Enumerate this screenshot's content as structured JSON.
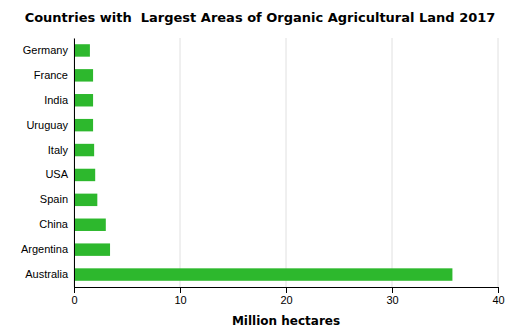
{
  "chart_data": {
    "type": "bar",
    "orientation": "horizontal",
    "title": "Countries with  Largest Areas of Organic Agricultural Land 2017",
    "xlabel": "Million hectares",
    "categories": [
      "Australia",
      "Argentina",
      "China",
      "Spain",
      "USA",
      "Italy",
      "Uruguay",
      "India",
      "France",
      "Germany"
    ],
    "values": [
      35.7,
      3.4,
      3.0,
      2.2,
      2.0,
      1.9,
      1.8,
      1.8,
      1.8,
      1.5
    ],
    "color": "#2db82d",
    "xlim": [
      0,
      40
    ],
    "xticks": [
      0,
      10,
      20,
      30,
      40
    ],
    "grid": true
  }
}
